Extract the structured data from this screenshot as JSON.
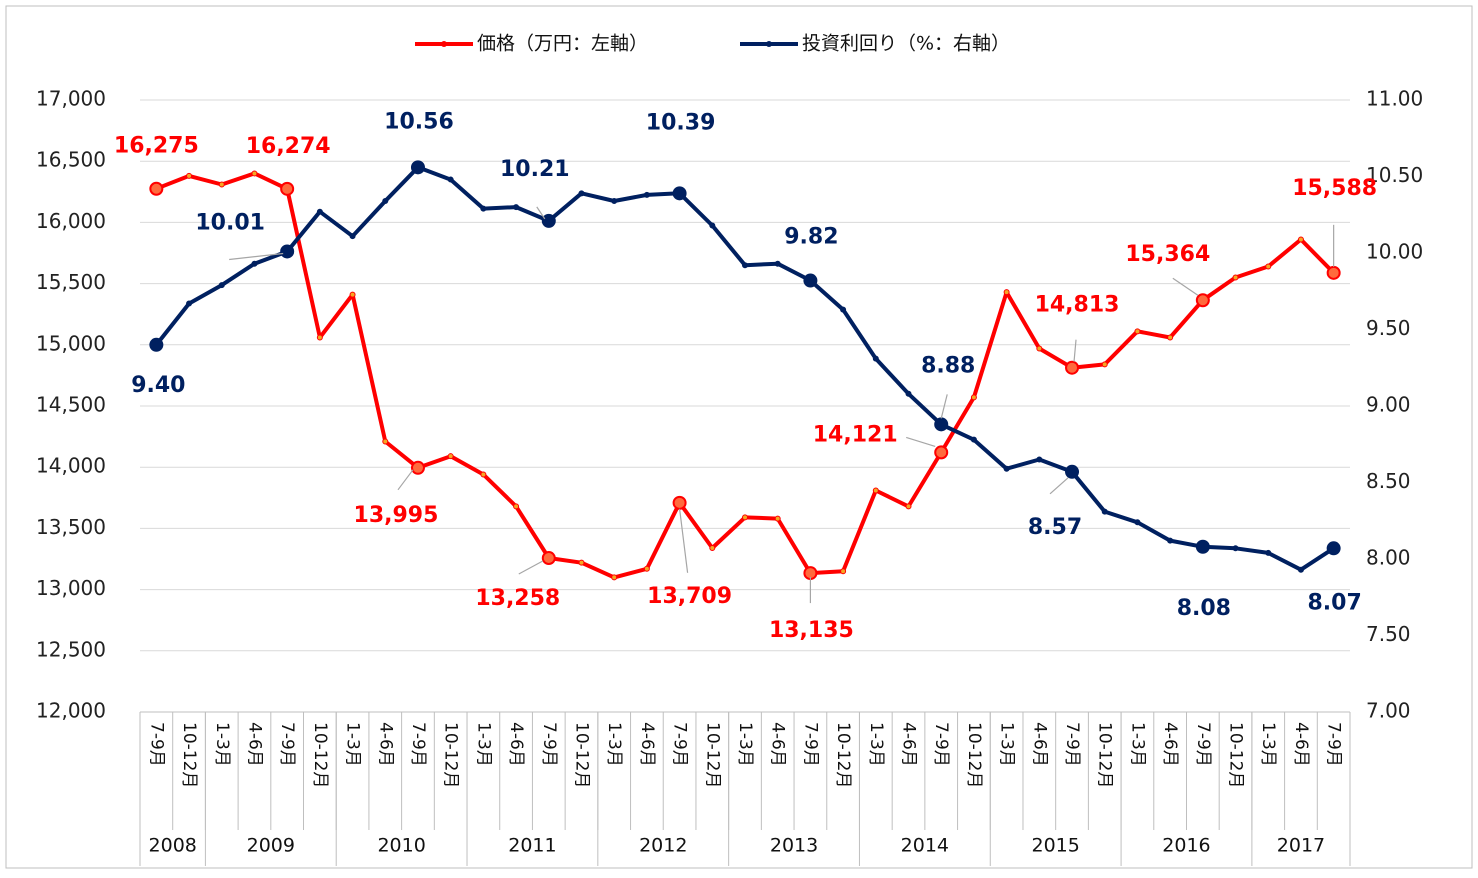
{
  "chart_data": {
    "type": "line",
    "categories": [
      "7-9月",
      "10-12月",
      "1-3月",
      "4-6月",
      "7-9月",
      "10-12月",
      "1-3月",
      "4-6月",
      "7-9月",
      "10-12月",
      "1-3月",
      "4-6月",
      "7-9月",
      "10-12月",
      "1-3月",
      "4-6月",
      "7-9月",
      "10-12月",
      "1-3月",
      "4-6月",
      "7-9月",
      "10-12月",
      "1-3月",
      "4-6月",
      "7-9月",
      "10-12月",
      "1-3月",
      "4-6月",
      "7-9月",
      "10-12月",
      "1-3月",
      "4-6月",
      "7-9月",
      "10-12月",
      "1-3月",
      "4-6月",
      "7-9月"
    ],
    "year_groups": [
      {
        "label": "2008",
        "span": 2
      },
      {
        "label": "2009",
        "span": 4
      },
      {
        "label": "2010",
        "span": 4
      },
      {
        "label": "2011",
        "span": 4
      },
      {
        "label": "2012",
        "span": 4
      },
      {
        "label": "2013",
        "span": 4
      },
      {
        "label": "2014",
        "span": 4
      },
      {
        "label": "2015",
        "span": 4
      },
      {
        "label": "2016",
        "span": 4
      },
      {
        "label": "2017",
        "span": 3
      }
    ],
    "series": [
      {
        "name": "価格（万円：左軸）",
        "color": "#ff0000",
        "axis": "y",
        "values": [
          16275,
          16380,
          16310,
          16400,
          16274,
          15060,
          15410,
          14210,
          13995,
          14090,
          13940,
          13680,
          13258,
          13220,
          13100,
          13170,
          13709,
          13340,
          13590,
          13580,
          13135,
          13150,
          13810,
          13680,
          14121,
          14570,
          15430,
          14970,
          14813,
          14840,
          15110,
          15060,
          15364,
          15550,
          15640,
          15860,
          15588
        ],
        "value_labels": [
          "16,275",
          null,
          null,
          null,
          "16,274",
          null,
          null,
          null,
          "13,995",
          null,
          null,
          null,
          "13,258",
          null,
          null,
          null,
          "13,709",
          null,
          null,
          null,
          "13,135",
          null,
          null,
          null,
          "14,121",
          null,
          null,
          null,
          "14,813",
          null,
          null,
          null,
          "15,364",
          null,
          null,
          null,
          "15,588"
        ]
      },
      {
        "name": "投資利回り（%：右軸）",
        "color": "#002060",
        "axis": "y2",
        "values": [
          9.4,
          9.67,
          9.79,
          9.93,
          10.01,
          10.27,
          10.11,
          10.34,
          10.56,
          10.48,
          10.29,
          10.3,
          10.21,
          10.39,
          10.34,
          10.38,
          10.39,
          10.18,
          9.92,
          9.93,
          9.82,
          9.63,
          9.31,
          9.08,
          8.88,
          8.78,
          8.59,
          8.65,
          8.57,
          8.31,
          8.24,
          8.12,
          8.08,
          8.07,
          8.04,
          7.93,
          8.07
        ],
        "value_labels": [
          "9.40",
          null,
          null,
          null,
          "10.01",
          null,
          null,
          null,
          "10.56",
          null,
          null,
          null,
          "10.21",
          null,
          null,
          null,
          "10.39",
          null,
          null,
          null,
          "9.82",
          null,
          null,
          null,
          "8.88",
          null,
          null,
          null,
          "8.57",
          null,
          null,
          null,
          "8.08",
          null,
          null,
          null,
          "8.07"
        ]
      }
    ],
    "ylim": [
      12000,
      17000
    ],
    "yticks": [
      {
        "value": 12000,
        "label": "12,000"
      },
      {
        "value": 12500,
        "label": "12,500"
      },
      {
        "value": 13000,
        "label": "13,000"
      },
      {
        "value": 13500,
        "label": "13,500"
      },
      {
        "value": 14000,
        "label": "14,000"
      },
      {
        "value": 14500,
        "label": "14,500"
      },
      {
        "value": 15000,
        "label": "15,000"
      },
      {
        "value": 15500,
        "label": "15,500"
      },
      {
        "value": 16000,
        "label": "16,000"
      },
      {
        "value": 16500,
        "label": "16,500"
      },
      {
        "value": 17000,
        "label": "17,000"
      }
    ],
    "y2lim": [
      7,
      11
    ],
    "y2ticks": [
      {
        "value": 7,
        "label": "7.00"
      },
      {
        "value": 7.5,
        "label": "7.50"
      },
      {
        "value": 8,
        "label": "8.00"
      },
      {
        "value": 8.5,
        "label": "8.50"
      },
      {
        "value": 9,
        "label": "9.00"
      },
      {
        "value": 9.5,
        "label": "9.50"
      },
      {
        "value": 10,
        "label": "10.00"
      },
      {
        "value": 10.5,
        "label": "10.50"
      },
      {
        "value": 11,
        "label": "11.00"
      }
    ],
    "grid": true,
    "legend": "top"
  }
}
